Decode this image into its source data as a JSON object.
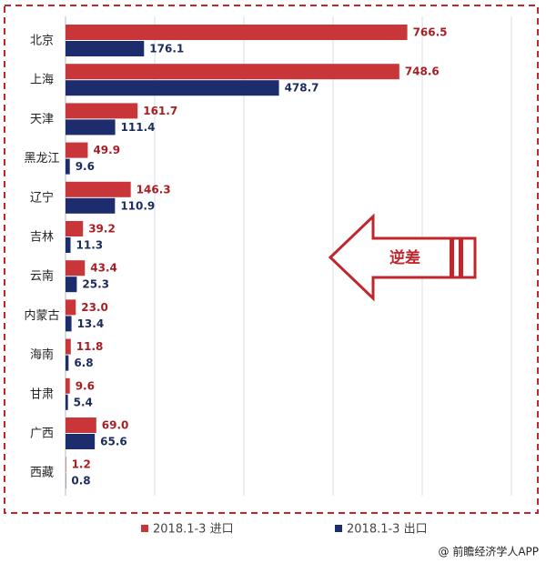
{
  "chart_data": {
    "type": "hbar",
    "categories": [
      "北京",
      "上海",
      "天津",
      "黑龙江",
      "辽宁",
      "吉林",
      "云南",
      "内蒙古",
      "海南",
      "甘肃",
      "广西",
      "西藏"
    ],
    "series": [
      {
        "name": "2018.1-3 进口",
        "color": "#c8363a",
        "values": [
          766.5,
          748.6,
          161.7,
          49.9,
          146.3,
          39.2,
          43.4,
          23.0,
          11.8,
          9.6,
          69.0,
          1.2
        ],
        "value_labels": [
          "766.5",
          "748.6",
          "161.7",
          "49.9",
          "146.3",
          "39.2",
          "43.4",
          "23.0",
          "11.8",
          "9.6",
          "69.0",
          "1.2"
        ]
      },
      {
        "name": "2018.1-3 出口",
        "color": "#1c2c6c",
        "values": [
          176.1,
          478.7,
          111.4,
          9.6,
          110.9,
          11.3,
          25.3,
          13.4,
          6.8,
          5.4,
          65.6,
          0.8
        ],
        "value_labels": [
          "176.1",
          "478.7",
          "111.4",
          "9.6",
          "110.9",
          "11.3",
          "25.3",
          "13.4",
          "6.8",
          "5.4",
          "65.6",
          "0.8"
        ]
      }
    ],
    "xlim": [
      0,
      1000
    ],
    "xticks": [
      200,
      400,
      600,
      800,
      1000
    ],
    "grid": true,
    "annotation": "逆差",
    "source": "@ 前瞻经济学人APP"
  }
}
